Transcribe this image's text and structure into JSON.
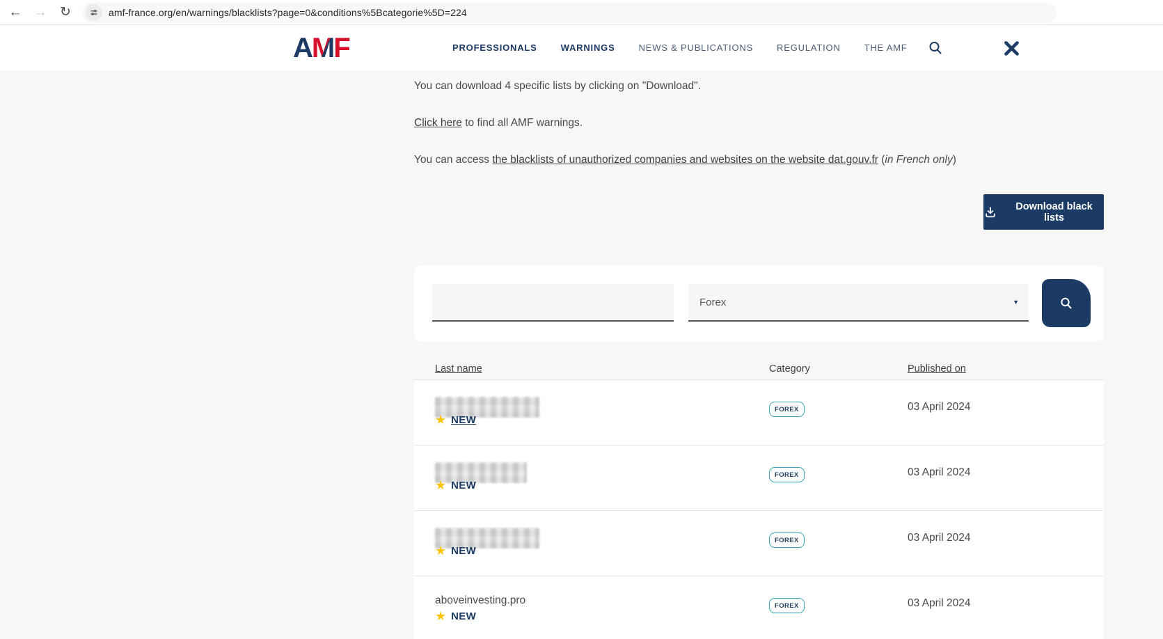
{
  "browser": {
    "url": "amf-france.org/en/warnings/blacklists?page=0&conditions%5Bcategorie%5D=224",
    "back_glyph": "←",
    "forward_glyph": "→",
    "reload_glyph": "↻"
  },
  "header": {
    "logo": {
      "a": "A",
      "m": "M",
      "f": "F"
    },
    "nav": [
      {
        "label": "PROFESSIONALS",
        "emphasis": true
      },
      {
        "label": "WARNINGS",
        "emphasis": true
      },
      {
        "label": "NEWS & PUBLICATIONS",
        "emphasis": false
      },
      {
        "label": "REGULATION",
        "emphasis": false
      },
      {
        "label": "THE AMF",
        "emphasis": false
      }
    ]
  },
  "intro": {
    "p1": "You can download 4 specific lists by clicking on \"Download\".",
    "p2": {
      "link": "Click here",
      "rest": " to find all AMF warnings."
    },
    "p3": {
      "pre": "You can access ",
      "link": "the blacklists of unauthorized companies and websites on the website dat.gouv.fr",
      "open_paren": " (",
      "italic": "in French only",
      "close_paren": ")"
    }
  },
  "actions": {
    "download_label": "Download black lists"
  },
  "filters": {
    "keyword_value": "",
    "keyword_placeholder": "",
    "category_value": "Forex"
  },
  "table": {
    "headers": {
      "name": "Last name",
      "category": "Category",
      "published": "Published on"
    },
    "new_label": "NEW",
    "rows": [
      {
        "name": "",
        "redacted": true,
        "redact_width": 150,
        "is_new": true,
        "new_underlined": true,
        "category": "FOREX",
        "published": "03 April 2024"
      },
      {
        "name": "",
        "redacted": true,
        "redact_width": 132,
        "is_new": true,
        "new_underlined": false,
        "category": "FOREX",
        "published": "03 April 2024"
      },
      {
        "name": "",
        "redacted": true,
        "redact_width": 150,
        "is_new": true,
        "new_underlined": false,
        "category": "FOREX",
        "published": "03 April 2024"
      },
      {
        "name": "aboveinvesting.pro",
        "redacted": false,
        "is_new": true,
        "new_underlined": false,
        "category": "FOREX",
        "published": "03 April 2024"
      }
    ]
  },
  "colors": {
    "navy": "#1c3a63",
    "red": "#d8112b",
    "badge_border": "#35a3b8",
    "star": "#ffc40c",
    "page_bg": "#f7f7f7"
  }
}
